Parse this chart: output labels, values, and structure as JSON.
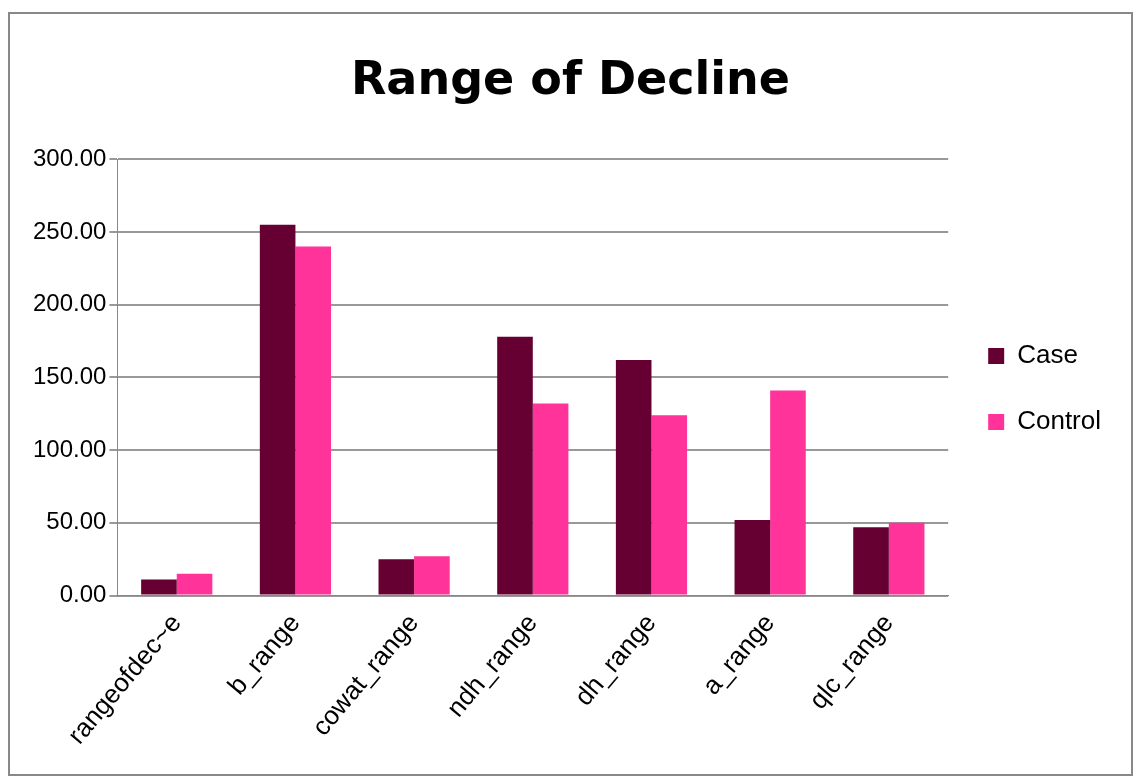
{
  "chart_data": {
    "type": "bar",
    "title": "Range of Decline",
    "categories": [
      "rangeofdec~e",
      "b_range",
      "cowat_range",
      "ndh_range",
      "dh_range",
      "a_range",
      "qlc_range"
    ],
    "series": [
      {
        "name": "Case",
        "color": "#660033",
        "values": [
          11,
          255,
          25,
          178,
          162,
          52,
          47
        ]
      },
      {
        "name": "Control",
        "color": "#ff3399",
        "values": [
          15,
          240,
          27,
          132,
          124,
          141,
          50
        ]
      }
    ],
    "ylim": [
      0,
      300
    ],
    "yticks": [
      {
        "value": 0,
        "label": "0.00"
      },
      {
        "value": 50,
        "label": "50.00"
      },
      {
        "value": 100,
        "label": "100.00"
      },
      {
        "value": 150,
        "label": "150.00"
      },
      {
        "value": 200,
        "label": "200.00"
      },
      {
        "value": 250,
        "label": "250.00"
      },
      {
        "value": 300,
        "label": "300.00"
      }
    ],
    "grid": "y",
    "legend": "right"
  }
}
